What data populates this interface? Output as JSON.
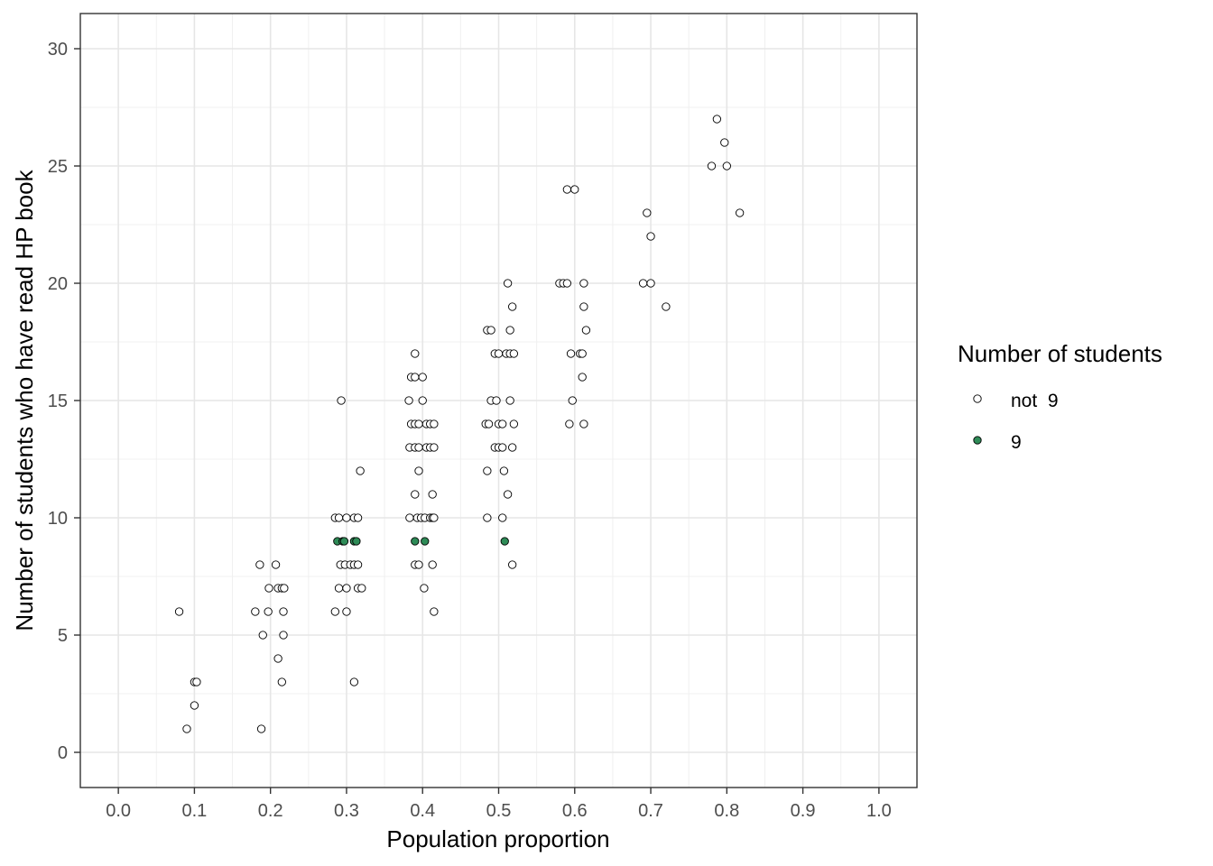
{
  "chart_data": {
    "type": "scatter",
    "title": "",
    "xlabel": "Population proportion",
    "ylabel": "Number of students who have read HP book",
    "xlim": [
      -0.05,
      1.05
    ],
    "ylim": [
      -1.5,
      31.5
    ],
    "x_ticks": [
      "0.0",
      "0.1",
      "0.2",
      "0.3",
      "0.4",
      "0.5",
      "0.6",
      "0.7",
      "0.8",
      "0.9",
      "1.0"
    ],
    "y_ticks": [
      "0",
      "5",
      "10",
      "15",
      "20",
      "25",
      "30"
    ],
    "grid": true,
    "legend": {
      "title": "Number of students",
      "position": "right",
      "entries": [
        {
          "label": "not  9",
          "fill": "#ffffff"
        },
        {
          "label": "9",
          "fill": "#2e8b57"
        }
      ]
    },
    "series": [
      {
        "name": "not  9",
        "fill": "#ffffff",
        "points": [
          [
            0.08,
            6
          ],
          [
            0.09,
            1
          ],
          [
            0.1,
            3
          ],
          [
            0.103,
            3
          ],
          [
            0.1,
            2
          ],
          [
            0.186,
            8
          ],
          [
            0.207,
            8
          ],
          [
            0.198,
            7
          ],
          [
            0.21,
            7
          ],
          [
            0.215,
            7
          ],
          [
            0.218,
            7
          ],
          [
            0.18,
            6
          ],
          [
            0.197,
            6
          ],
          [
            0.217,
            6
          ],
          [
            0.19,
            5
          ],
          [
            0.217,
            5
          ],
          [
            0.21,
            4
          ],
          [
            0.215,
            3
          ],
          [
            0.188,
            1
          ],
          [
            0.293,
            15
          ],
          [
            0.318,
            12
          ],
          [
            0.285,
            10
          ],
          [
            0.29,
            10
          ],
          [
            0.3,
            10
          ],
          [
            0.31,
            10
          ],
          [
            0.315,
            10
          ],
          [
            0.292,
            8
          ],
          [
            0.298,
            8
          ],
          [
            0.305,
            8
          ],
          [
            0.31,
            8
          ],
          [
            0.315,
            8
          ],
          [
            0.29,
            7
          ],
          [
            0.3,
            7
          ],
          [
            0.315,
            7
          ],
          [
            0.32,
            7
          ],
          [
            0.285,
            6
          ],
          [
            0.3,
            6
          ],
          [
            0.31,
            3
          ],
          [
            0.39,
            17
          ],
          [
            0.385,
            16
          ],
          [
            0.39,
            16
          ],
          [
            0.4,
            16
          ],
          [
            0.382,
            15
          ],
          [
            0.4,
            15
          ],
          [
            0.385,
            14
          ],
          [
            0.39,
            14
          ],
          [
            0.395,
            14
          ],
          [
            0.405,
            14
          ],
          [
            0.41,
            14
          ],
          [
            0.415,
            14
          ],
          [
            0.383,
            13
          ],
          [
            0.39,
            13
          ],
          [
            0.395,
            13
          ],
          [
            0.405,
            13
          ],
          [
            0.41,
            13
          ],
          [
            0.415,
            13
          ],
          [
            0.395,
            12
          ],
          [
            0.39,
            11
          ],
          [
            0.413,
            11
          ],
          [
            0.383,
            10
          ],
          [
            0.393,
            10
          ],
          [
            0.398,
            10
          ],
          [
            0.403,
            10
          ],
          [
            0.41,
            10
          ],
          [
            0.413,
            10
          ],
          [
            0.415,
            10
          ],
          [
            0.39,
            8
          ],
          [
            0.395,
            8
          ],
          [
            0.413,
            8
          ],
          [
            0.402,
            7
          ],
          [
            0.415,
            6
          ],
          [
            0.485,
            18
          ],
          [
            0.49,
            18
          ],
          [
            0.512,
            20
          ],
          [
            0.518,
            19
          ],
          [
            0.515,
            18
          ],
          [
            0.495,
            17
          ],
          [
            0.5,
            17
          ],
          [
            0.51,
            17
          ],
          [
            0.515,
            17
          ],
          [
            0.52,
            17
          ],
          [
            0.49,
            15
          ],
          [
            0.497,
            15
          ],
          [
            0.515,
            15
          ],
          [
            0.483,
            14
          ],
          [
            0.487,
            14
          ],
          [
            0.5,
            14
          ],
          [
            0.505,
            14
          ],
          [
            0.52,
            14
          ],
          [
            0.495,
            13
          ],
          [
            0.5,
            13
          ],
          [
            0.505,
            13
          ],
          [
            0.518,
            13
          ],
          [
            0.485,
            12
          ],
          [
            0.507,
            12
          ],
          [
            0.512,
            11
          ],
          [
            0.485,
            10
          ],
          [
            0.505,
            10
          ],
          [
            0.518,
            8
          ],
          [
            0.59,
            24
          ],
          [
            0.6,
            24
          ],
          [
            0.58,
            20
          ],
          [
            0.585,
            20
          ],
          [
            0.59,
            20
          ],
          [
            0.612,
            20
          ],
          [
            0.612,
            19
          ],
          [
            0.615,
            18
          ],
          [
            0.595,
            17
          ],
          [
            0.607,
            17
          ],
          [
            0.61,
            17
          ],
          [
            0.61,
            16
          ],
          [
            0.597,
            15
          ],
          [
            0.593,
            14
          ],
          [
            0.612,
            14
          ],
          [
            0.695,
            23
          ],
          [
            0.7,
            22
          ],
          [
            0.69,
            20
          ],
          [
            0.7,
            20
          ],
          [
            0.72,
            19
          ],
          [
            0.787,
            27
          ],
          [
            0.797,
            26
          ],
          [
            0.78,
            25
          ],
          [
            0.8,
            25
          ],
          [
            0.817,
            23
          ]
        ]
      },
      {
        "name": "9",
        "fill": "#2e8b57",
        "points": [
          [
            0.288,
            9
          ],
          [
            0.295,
            9
          ],
          [
            0.297,
            9
          ],
          [
            0.31,
            9
          ],
          [
            0.313,
            9
          ],
          [
            0.39,
            9
          ],
          [
            0.403,
            9
          ],
          [
            0.508,
            9
          ]
        ]
      }
    ]
  }
}
